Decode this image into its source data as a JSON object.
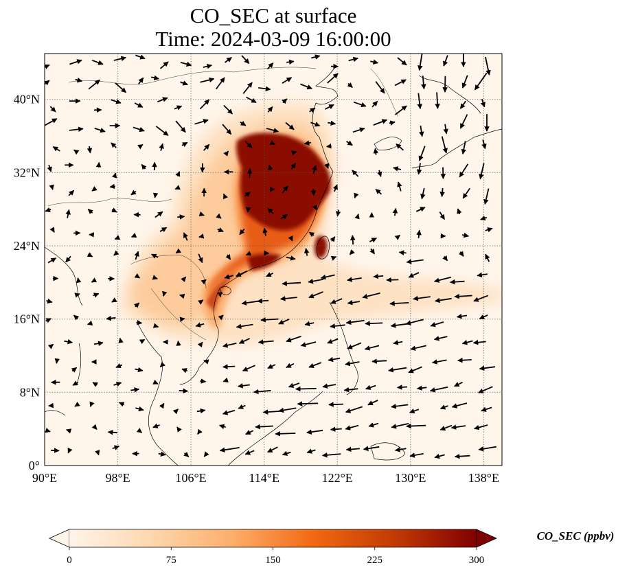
{
  "title": {
    "line1": "CO_SEC at surface",
    "line2": "Time: 2024-03-09 16:00:00"
  },
  "map": {
    "lon_range": [
      90,
      140
    ],
    "lat_range": [
      0,
      45
    ],
    "lon_ticks": [
      {
        "value": 90,
        "label": "90°E"
      },
      {
        "value": 98,
        "label": "98°E"
      },
      {
        "value": 106,
        "label": "106°E"
      },
      {
        "value": 114,
        "label": "114°E"
      },
      {
        "value": 122,
        "label": "122°E"
      },
      {
        "value": 130,
        "label": "130°E"
      },
      {
        "value": 138,
        "label": "138°E"
      }
    ],
    "lat_ticks": [
      {
        "value": 0,
        "label": "0°"
      },
      {
        "value": 8,
        "label": "8°N"
      },
      {
        "value": 16,
        "label": "16°N"
      },
      {
        "value": 24,
        "label": "24°N"
      },
      {
        "value": 32,
        "label": "32°N"
      },
      {
        "value": 40,
        "label": "40°N"
      }
    ],
    "gridlines": "dotted",
    "background_color": "#fff5eb",
    "coastline_color": "#000000"
  },
  "colorbar": {
    "label": "CO_SEC (ppbv)",
    "min": 0,
    "max": 300,
    "ticks": [
      {
        "value": 0,
        "label": "0"
      },
      {
        "value": 75,
        "label": "75"
      },
      {
        "value": 150,
        "label": "150"
      },
      {
        "value": 225,
        "label": "225"
      },
      {
        "value": 300,
        "label": "300"
      }
    ],
    "extend": "both",
    "colormap": [
      "#fff5eb",
      "#fdd2a5",
      "#fd9243",
      "#df5005",
      "#a53603",
      "#7f0000"
    ]
  }
}
